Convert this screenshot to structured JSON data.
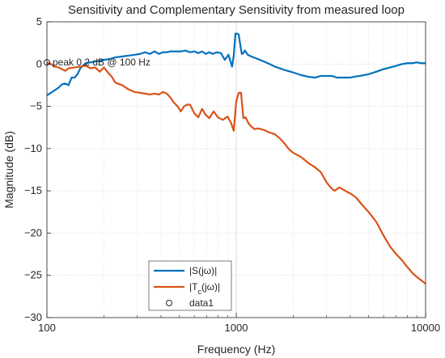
{
  "chart_data": {
    "type": "line",
    "title": "Sensitivity and Complementary Sensitivity from measured loop",
    "xlabel": "Frequency (Hz)",
    "ylabel": "Magnitude (dB)",
    "xscale": "log",
    "xlim": [
      100,
      10000
    ],
    "ylim": [
      -30,
      5
    ],
    "xticks": [
      100,
      1000,
      10000
    ],
    "xtick_labels": [
      "100",
      "1000",
      "10000"
    ],
    "yticks": [
      5,
      0,
      -5,
      -10,
      -15,
      -20,
      -25,
      -30
    ],
    "ytick_labels": [
      "5",
      "0",
      "−5",
      "−10",
      "−15",
      "−20",
      "−25",
      "−30"
    ],
    "grid": true,
    "legend_location": "bottom-center",
    "series": [
      {
        "name": "|S(jω)|",
        "color": "#0072BD",
        "x": [
          100,
          105,
          110,
          115,
          120,
          125,
          130,
          135,
          140,
          145,
          150,
          155,
          160,
          170,
          180,
          190,
          200,
          215,
          230,
          250,
          270,
          290,
          310,
          330,
          350,
          370,
          390,
          410,
          430,
          450,
          470,
          490,
          510,
          540,
          570,
          600,
          630,
          660,
          690,
          720,
          750,
          790,
          830,
          870,
          910,
          950,
          970,
          990,
          1010,
          1030,
          1050,
          1070,
          1090,
          1110,
          1150,
          1200,
          1300,
          1400,
          1500,
          1600,
          1800,
          2000,
          2200,
          2400,
          2600,
          2800,
          3000,
          3200,
          3400,
          3600,
          3800,
          4000,
          4200,
          4500,
          5000,
          5500,
          6000,
          6500,
          7000,
          7500,
          8000,
          8500,
          9000,
          9500,
          10000
        ],
        "y": [
          -3.7,
          -3.4,
          -3.1,
          -2.8,
          -2.4,
          -2.3,
          -2.5,
          -1.6,
          -1.6,
          -1.2,
          -0.5,
          -0.2,
          0.1,
          0.2,
          0.3,
          0.4,
          0.5,
          0.6,
          0.8,
          0.9,
          1.0,
          1.1,
          1.2,
          1.4,
          1.2,
          1.5,
          1.2,
          1.4,
          1.4,
          1.5,
          1.5,
          1.5,
          1.5,
          1.6,
          1.4,
          1.5,
          1.3,
          1.5,
          1.2,
          1.4,
          1.2,
          1.4,
          1.3,
          0.5,
          1.1,
          -0.3,
          1.0,
          3.6,
          3.6,
          3.5,
          2.3,
          1.2,
          1.3,
          1.6,
          1.1,
          0.9,
          0.6,
          0.3,
          0.0,
          -0.3,
          -0.7,
          -1.0,
          -1.3,
          -1.5,
          -1.6,
          -1.4,
          -1.4,
          -1.4,
          -1.6,
          -1.6,
          -1.6,
          -1.6,
          -1.5,
          -1.4,
          -1.2,
          -0.9,
          -0.6,
          -0.4,
          -0.2,
          0.0,
          0.1,
          0.1,
          0.2,
          0.1,
          0.1
        ]
      },
      {
        "name": "|T_c(jω)|",
        "color": "#D95319",
        "x": [
          100,
          105,
          110,
          115,
          120,
          125,
          130,
          140,
          150,
          160,
          170,
          180,
          190,
          200,
          210,
          220,
          230,
          250,
          270,
          290,
          310,
          330,
          350,
          370,
          390,
          410,
          430,
          450,
          470,
          490,
          510,
          530,
          550,
          570,
          600,
          630,
          660,
          690,
          720,
          760,
          800,
          850,
          900,
          940,
          970,
          1000,
          1030,
          1060,
          1090,
          1120,
          1160,
          1200,
          1250,
          1300,
          1400,
          1500,
          1600,
          1700,
          1800,
          1900,
          2000,
          2200,
          2400,
          2600,
          2800,
          3000,
          3150,
          3300,
          3500,
          3700,
          3900,
          4000,
          4300,
          4600,
          5000,
          5500,
          6000,
          6500,
          7000,
          7500,
          8000,
          8500,
          9000,
          9500,
          10000
        ],
        "y": [
          0.2,
          0.0,
          -0.3,
          -0.4,
          -0.6,
          -0.8,
          -0.5,
          -0.4,
          -0.3,
          -0.2,
          -0.5,
          -0.4,
          -0.9,
          -0.4,
          -1.0,
          -1.5,
          -2.2,
          -2.5,
          -3.0,
          -3.3,
          -3.4,
          -3.5,
          -3.6,
          -3.5,
          -3.6,
          -3.3,
          -3.5,
          -4.0,
          -4.6,
          -5.0,
          -5.6,
          -5.0,
          -4.8,
          -4.8,
          -5.8,
          -6.3,
          -5.3,
          -6.0,
          -6.4,
          -5.6,
          -6.3,
          -6.6,
          -6.2,
          -7.0,
          -7.9,
          -4.4,
          -3.4,
          -3.4,
          -6.4,
          -6.3,
          -7.0,
          -7.4,
          -7.7,
          -7.6,
          -7.8,
          -8.1,
          -8.3,
          -8.8,
          -9.4,
          -10.1,
          -10.5,
          -11.0,
          -11.7,
          -12.2,
          -12.8,
          -14.0,
          -14.6,
          -15.0,
          -14.6,
          -14.9,
          -15.2,
          -15.3,
          -15.8,
          -16.6,
          -17.5,
          -18.7,
          -20.3,
          -21.6,
          -22.5,
          -23.2,
          -24.0,
          -24.7,
          -25.2,
          -25.6,
          -26.0
        ]
      },
      {
        "name": "data1",
        "type": "scatter",
        "marker": "circle",
        "x": [
          100
        ],
        "y": [
          0.2
        ]
      }
    ],
    "annotations": [
      {
        "text": "peak 0.2 dB @ 100 Hz",
        "x": 100,
        "y": 0.2
      }
    ]
  }
}
